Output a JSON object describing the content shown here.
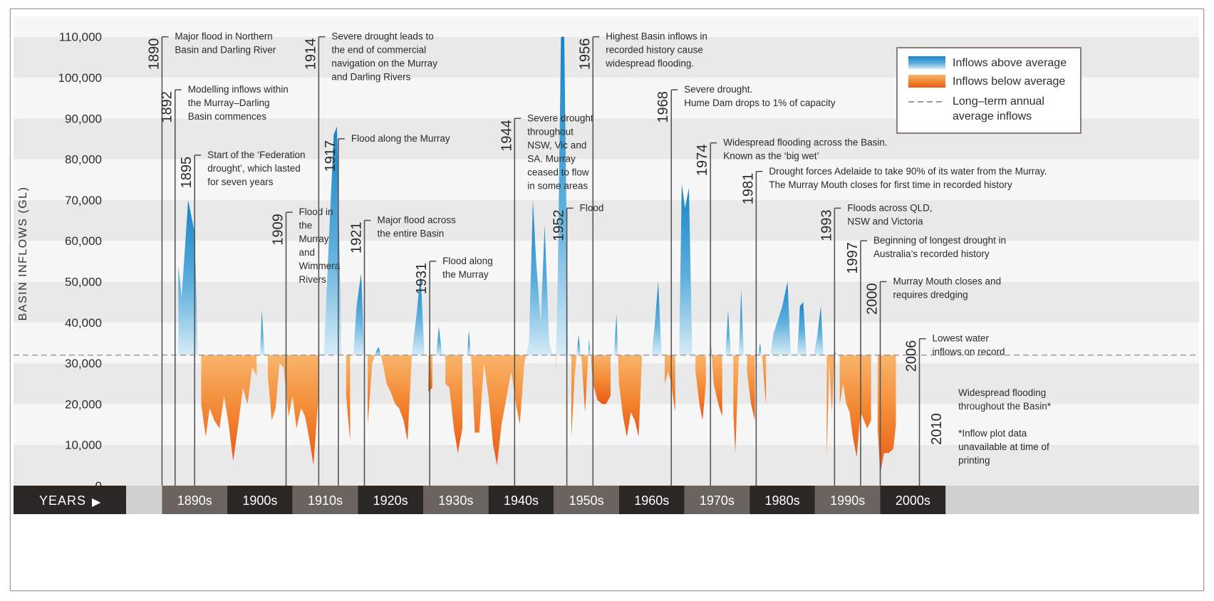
{
  "chart_data": {
    "type": "area",
    "title": "",
    "ylabel": "BASIN INFLOWS (GL)",
    "xlabel": "YEARS",
    "ylim": [
      0,
      115000
    ],
    "xlim": [
      1884.5,
      2015
    ],
    "average": 32000,
    "y_ticks": [
      {
        "value": 0,
        "label": "0"
      },
      {
        "value": 10000,
        "label": "10,000"
      },
      {
        "value": 20000,
        "label": "20,000"
      },
      {
        "value": 30000,
        "label": "30,000"
      },
      {
        "value": 40000,
        "label": "40,000"
      },
      {
        "value": 50000,
        "label": "50,000"
      },
      {
        "value": 60000,
        "label": "60,000"
      },
      {
        "value": 70000,
        "label": "70,000"
      },
      {
        "value": 80000,
        "label": "80,000"
      },
      {
        "value": 90000,
        "label": "90,000"
      },
      {
        "value": 100000,
        "label": "100,000"
      },
      {
        "value": 110000,
        "label": "110,000"
      }
    ],
    "decades": [
      {
        "label": "1890s",
        "start": 1890
      },
      {
        "label": "1900s",
        "start": 1900
      },
      {
        "label": "1910s",
        "start": 1910
      },
      {
        "label": "1920s",
        "start": 1920
      },
      {
        "label": "1930s",
        "start": 1930
      },
      {
        "label": "1940s",
        "start": 1940
      },
      {
        "label": "1950s",
        "start": 1950
      },
      {
        "label": "1960s",
        "start": 1960
      },
      {
        "label": "1970s",
        "start": 1970
      },
      {
        "label": "1980s",
        "start": 1980
      },
      {
        "label": "1990s",
        "start": 1990
      },
      {
        "label": "2000s",
        "start": 2000
      }
    ],
    "series": [
      {
        "name": "Basin inflows",
        "points": [
          [
            1892.5,
            54000
          ],
          [
            1893,
            46000
          ],
          [
            1894,
            70000
          ],
          [
            1895,
            62000
          ],
          [
            1895.5,
            32000
          ],
          [
            1896,
            20000
          ],
          [
            1896.7,
            12000
          ],
          [
            1897.3,
            19000
          ],
          [
            1898,
            16000
          ],
          [
            1898.8,
            14000
          ],
          [
            1899.5,
            22000
          ],
          [
            1900.2,
            15000
          ],
          [
            1900.9,
            6000
          ],
          [
            1901.6,
            14000
          ],
          [
            1902.4,
            24000
          ],
          [
            1903.1,
            20000
          ],
          [
            1903.8,
            29000
          ],
          [
            1904.5,
            27000
          ],
          [
            1905,
            32000
          ],
          [
            1905.3,
            43000
          ],
          [
            1905.7,
            32000
          ],
          [
            1906.2,
            27000
          ],
          [
            1906.8,
            16000
          ],
          [
            1907.4,
            19000
          ],
          [
            1908,
            30000
          ],
          [
            1908.6,
            29000
          ],
          [
            1909.4,
            17000
          ],
          [
            1910,
            22000
          ],
          [
            1910.6,
            14000
          ],
          [
            1911.3,
            19000
          ],
          [
            1911.9,
            17000
          ],
          [
            1912.5,
            12000
          ],
          [
            1913.2,
            5000
          ],
          [
            1914,
            23000
          ],
          [
            1914.8,
            32000
          ],
          [
            1915.5,
            58000
          ],
          [
            1916.3,
            86000
          ],
          [
            1916.8,
            88000
          ],
          [
            1917.5,
            32000
          ],
          [
            1918.2,
            22000
          ],
          [
            1918.8,
            11000
          ],
          [
            1919.3,
            32000
          ],
          [
            1919.8,
            44000
          ],
          [
            1920.5,
            52000
          ],
          [
            1921,
            32000
          ],
          [
            1921.5,
            15000
          ],
          [
            1922.2,
            30000
          ],
          [
            1922.8,
            33000
          ],
          [
            1923.2,
            34000
          ],
          [
            1923.8,
            30000
          ],
          [
            1924.4,
            25000
          ],
          [
            1925,
            23000
          ],
          [
            1925.7,
            20000
          ],
          [
            1926.3,
            19000
          ],
          [
            1927,
            16000
          ],
          [
            1927.6,
            11000
          ],
          [
            1928.3,
            33000
          ],
          [
            1929,
            42000
          ],
          [
            1929.6,
            52000
          ],
          [
            1930.2,
            32000
          ],
          [
            1930.8,
            23000
          ],
          [
            1931.4,
            24000
          ],
          [
            1932,
            32000
          ],
          [
            1932.4,
            39000
          ],
          [
            1932.9,
            32000
          ],
          [
            1933.4,
            25000
          ],
          [
            1934,
            24000
          ],
          [
            1934.7,
            14000
          ],
          [
            1935.3,
            8000
          ],
          [
            1936,
            14000
          ],
          [
            1936.7,
            32000
          ],
          [
            1937,
            38000
          ],
          [
            1937.4,
            30000
          ],
          [
            1937.9,
            13000
          ],
          [
            1938.6,
            13000
          ],
          [
            1939.3,
            30000
          ],
          [
            1940,
            22000
          ],
          [
            1940.7,
            10000
          ],
          [
            1941.3,
            5000
          ],
          [
            1942,
            15000
          ],
          [
            1942.8,
            22000
          ],
          [
            1943.5,
            28000
          ],
          [
            1944.2,
            20000
          ],
          [
            1944.8,
            15000
          ],
          [
            1945.5,
            30000
          ],
          [
            1946.2,
            35000
          ],
          [
            1946.8,
            70000
          ],
          [
            1947.3,
            55000
          ],
          [
            1948,
            40000
          ],
          [
            1948.6,
            64000
          ],
          [
            1949.3,
            35000
          ],
          [
            1949.8,
            32000
          ],
          [
            1950.3,
            28000
          ],
          [
            1950.6,
            50000
          ],
          [
            1951.1,
            110000
          ],
          [
            1951.6,
            110000
          ],
          [
            1952.2,
            32000
          ],
          [
            1952.7,
            12000
          ],
          [
            1953.2,
            27000
          ],
          [
            1953.8,
            37000
          ],
          [
            1954.3,
            30000
          ],
          [
            1954.8,
            18000
          ],
          [
            1955.4,
            36000
          ],
          [
            1956,
            25000
          ],
          [
            1956.7,
            21000
          ],
          [
            1957.4,
            20000
          ],
          [
            1958,
            20000
          ],
          [
            1958.7,
            22000
          ],
          [
            1959.2,
            32000
          ],
          [
            1959.6,
            42000
          ],
          [
            1960,
            25000
          ],
          [
            1960.6,
            17000
          ],
          [
            1961.2,
            12000
          ],
          [
            1961.8,
            18000
          ],
          [
            1962.4,
            16000
          ],
          [
            1963,
            12000
          ],
          [
            1963.5,
            31000
          ],
          [
            1964,
            32000
          ],
          [
            1964.5,
            22000
          ],
          [
            1965,
            32000
          ],
          [
            1965.5,
            40000
          ],
          [
            1966,
            50000
          ],
          [
            1966.5,
            32000
          ],
          [
            1967,
            25000
          ],
          [
            1967.5,
            28000
          ],
          [
            1968,
            25000
          ],
          [
            1968.6,
            18000
          ],
          [
            1969.2,
            32000
          ],
          [
            1969.6,
            74000
          ],
          [
            1970.1,
            68000
          ],
          [
            1970.7,
            73000
          ],
          [
            1971.2,
            32000
          ],
          [
            1971.7,
            28000
          ],
          [
            1972.3,
            20000
          ],
          [
            1972.8,
            16000
          ],
          [
            1973.3,
            25000
          ],
          [
            1973.8,
            32000
          ],
          [
            1974.1,
            34000
          ],
          [
            1974.5,
            25000
          ],
          [
            1975.2,
            20000
          ],
          [
            1975.8,
            17000
          ],
          [
            1976.3,
            32000
          ],
          [
            1976.7,
            43000
          ],
          [
            1977.1,
            32000
          ],
          [
            1977.5,
            18000
          ],
          [
            1977.8,
            8000
          ],
          [
            1978.3,
            30000
          ],
          [
            1978.7,
            48000
          ],
          [
            1979.1,
            32000
          ],
          [
            1979.6,
            28000
          ],
          [
            1980.2,
            20000
          ],
          [
            1980.8,
            16000
          ],
          [
            1981.3,
            32000
          ],
          [
            1981.6,
            35000
          ],
          [
            1982,
            30000
          ],
          [
            1982.5,
            20000
          ],
          [
            1983.2,
            32000
          ],
          [
            1983.6,
            37000
          ],
          [
            1984.2,
            40000
          ],
          [
            1985,
            44000
          ],
          [
            1985.8,
            50000
          ],
          [
            1986.3,
            32000
          ],
          [
            1986.8,
            25000
          ],
          [
            1987.3,
            32000
          ],
          [
            1987.7,
            44000
          ],
          [
            1988.2,
            45000
          ],
          [
            1988.7,
            32000
          ],
          [
            1989.3,
            15000
          ],
          [
            1989.8,
            32000
          ],
          [
            1990.3,
            36000
          ],
          [
            1990.9,
            44000
          ],
          [
            1991.3,
            32000
          ],
          [
            1991.8,
            7000
          ],
          [
            1992.2,
            30000
          ],
          [
            1992.6,
            18000
          ],
          [
            1993,
            33000
          ],
          [
            1993.4,
            32000
          ],
          [
            1993.8,
            20000
          ],
          [
            1994.3,
            25000
          ],
          [
            1994.8,
            20000
          ],
          [
            1995.3,
            18000
          ],
          [
            1995.8,
            12000
          ],
          [
            1996.4,
            7000
          ],
          [
            1997,
            18000
          ],
          [
            1997.5,
            16000
          ],
          [
            1998,
            14000
          ],
          [
            1998.6,
            16000
          ],
          [
            1999.2,
            32000
          ],
          [
            1999.6,
            14000
          ],
          [
            2000,
            3000
          ],
          [
            2000.6,
            8000
          ],
          [
            2001.3,
            8000
          ],
          [
            2002,
            9000
          ],
          [
            2002.4,
            15000
          ],
          [
            2002.8,
            32000
          ]
        ]
      }
    ],
    "legend": {
      "position": "top-right",
      "items": [
        {
          "label": "Inflows above average",
          "color": "#3a9ad2"
        },
        {
          "label": "Inflows below average",
          "color": "#f0681f"
        },
        {
          "label": "Long–term annual",
          "label2": "average inflows",
          "color": "#a8a8a8"
        }
      ]
    },
    "annotations": [
      {
        "year": "1890",
        "x": 1890,
        "top": 110000,
        "lines": [
          "Major flood in Northern",
          "Basin and Darling River"
        ]
      },
      {
        "year": "1892",
        "x": 1892,
        "top": 97000,
        "lines": [
          "Modelling inflows within",
          "the Murray–Darling",
          "Basin commences"
        ]
      },
      {
        "year": "1895",
        "x": 1895,
        "top": 81000,
        "lines": [
          "Start of the ‘Federation",
          "drought’, which lasted",
          "for seven years"
        ]
      },
      {
        "year": "1909",
        "x": 1909,
        "top": 67000,
        "lines": [
          "Flood in",
          "the",
          "Murray",
          "and",
          "Wimmera",
          "Rivers"
        ]
      },
      {
        "year": "1914",
        "x": 1914,
        "top": 110000,
        "lines": [
          "Severe drought leads to",
          "the end of commercial",
          "navigation on the Murray",
          "and Darling Rivers"
        ]
      },
      {
        "year": "1917",
        "x": 1917,
        "top": 85000,
        "lines": [
          "Flood along the Murray"
        ]
      },
      {
        "year": "1921",
        "x": 1921,
        "top": 65000,
        "lines": [
          "Major flood across",
          "the entire Basin"
        ]
      },
      {
        "year": "1931",
        "x": 1931,
        "top": 55000,
        "lines": [
          "Flood along",
          "the Murray"
        ]
      },
      {
        "year": "1944",
        "x": 1944,
        "top": 90000,
        "lines": [
          "Severe drought",
          "throughout",
          "NSW, Vic and",
          "SA. Murray",
          "ceased to flow",
          "in some areas"
        ]
      },
      {
        "year": "1952",
        "x": 1952,
        "top": 68000,
        "lines": [
          "Flood"
        ]
      },
      {
        "year": "1956",
        "x": 1956,
        "top": 110000,
        "lines": [
          "Highest Basin inflows in",
          "recorded history cause",
          "widespread flooding."
        ]
      },
      {
        "year": "1968",
        "x": 1968,
        "top": 97000,
        "lines": [
          "Severe drought.",
          "Hume Dam drops to 1% of capacity"
        ]
      },
      {
        "year": "1974",
        "x": 1974,
        "top": 84000,
        "lines": [
          "Widespread flooding across the Basin.",
          "Known as the ‘big wet’"
        ]
      },
      {
        "year": "1981",
        "x": 1981,
        "top": 77000,
        "lines": [
          "Drought forces Adelaide to take 90% of its water from the Murray.",
          "The Murray Mouth closes for first time in recorded history"
        ]
      },
      {
        "year": "1993",
        "x": 1993,
        "top": 68000,
        "lines": [
          "Floods across QLD,",
          "NSW and Victoria"
        ]
      },
      {
        "year": "1997",
        "x": 1997,
        "top": 60000,
        "lines": [
          "Beginning of longest drought in",
          "Australia’s recorded history"
        ]
      },
      {
        "year": "2000",
        "x": 2000,
        "top": 50000,
        "lines": [
          "Murray Mouth closes and",
          "requires dredging"
        ]
      },
      {
        "year": "2006",
        "x": 2006,
        "top": 36000,
        "lines": [
          "Lowest water",
          "inflows on record"
        ]
      },
      {
        "year": "2010",
        "x": 2010,
        "top": 0,
        "lines": [
          "Widespread flooding",
          "throughout the Basin*",
          "",
          "*Inflow plot data",
          "unavailable at time of",
          "printing"
        ]
      }
    ]
  }
}
